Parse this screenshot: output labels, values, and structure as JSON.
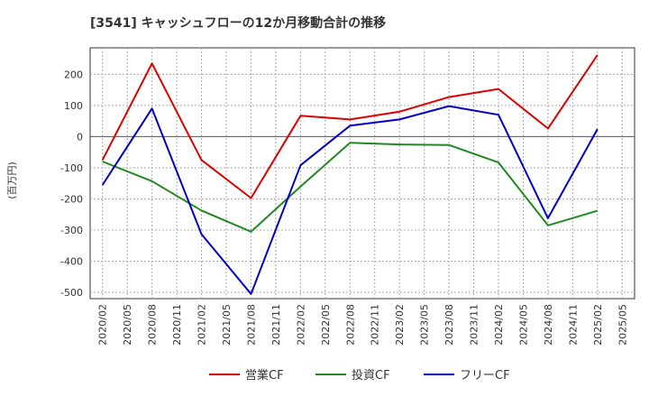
{
  "chart_data": {
    "type": "line",
    "title": "[3541]  キャッシュフローの12か月移動合計の推移",
    "ylabel": "(百万円)",
    "xlabel": "",
    "ylim": [
      -520,
      285
    ],
    "yticks": [
      200,
      100,
      0,
      -100,
      -200,
      -300,
      -400,
      -500
    ],
    "grid": true,
    "legend_position": "bottom",
    "x_labels": [
      "2020/02",
      "2020/05",
      "2020/08",
      "2020/11",
      "2021/02",
      "2021/05",
      "2021/08",
      "2021/11",
      "2022/02",
      "2022/05",
      "2022/08",
      "2022/11",
      "2023/02",
      "2023/05",
      "2023/08",
      "2023/11",
      "2024/02",
      "2024/05",
      "2024/08",
      "2024/11",
      "2025/02",
      "2025/05"
    ],
    "series": [
      {
        "name": "営業CF",
        "color": "#dd0000",
        "values": [
          -75,
          null,
          235,
          null,
          -75,
          null,
          -197,
          null,
          67,
          null,
          55,
          null,
          80,
          null,
          127,
          null,
          153,
          null,
          26,
          null,
          262
        ]
      },
      {
        "name": "投資CF",
        "color": "#228822",
        "values": [
          -80,
          null,
          -143,
          null,
          -237,
          null,
          -305,
          null,
          -160,
          null,
          -20,
          null,
          -25,
          null,
          -27,
          null,
          -83,
          null,
          -285,
          null,
          -238
        ]
      },
      {
        "name": "フリーCF",
        "color": "#0000cc",
        "values": [
          -155,
          null,
          90,
          null,
          -313,
          null,
          -505,
          null,
          -92,
          null,
          35,
          null,
          55,
          null,
          98,
          null,
          70,
          null,
          -262,
          null,
          24
        ]
      }
    ]
  }
}
